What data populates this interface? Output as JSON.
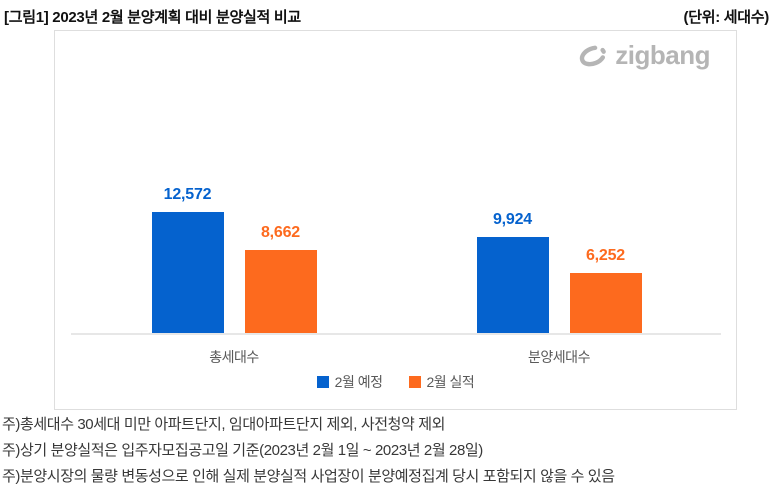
{
  "page": {
    "title": "[그림1] 2023년 2월 분양계획 대비 분양실적 비교",
    "unit_label": "(단위: 세대수)"
  },
  "logo": {
    "text": "zigbang",
    "color": "#b5b5b5"
  },
  "chart_data": {
    "type": "bar",
    "title": "2023년 2월 분양계획 대비 분양실적 비교",
    "xlabel": "",
    "ylabel": "세대수",
    "categories": [
      "총세대수",
      "분양세대수"
    ],
    "series": [
      {
        "name": "2월 예정",
        "color": "#0562CE",
        "values": [
          12572,
          9924
        ],
        "labels": [
          "12,572",
          "9,924"
        ]
      },
      {
        "name": "2월 실적",
        "color": "#FD6A1E",
        "values": [
          8662,
          6252
        ],
        "labels": [
          "8,662",
          "6,252"
        ]
      }
    ],
    "ylim": [
      0,
      13000
    ],
    "grid": false,
    "legend_position": "bottom"
  },
  "footnotes": [
    "주)총세대수 30세대 미만 아파트단지, 임대아파트단지 제외, 사전청약 제외",
    "주)상기 분양실적은 입주자모집공고일 기준(2023년 2월 1일 ~ 2023년 2월 28일)",
    "주)분양시장의 물량 변동성으로 인해 실제 분양실적 사업장이 분양예정집계 당시 포함되지 않을 수 있음"
  ]
}
